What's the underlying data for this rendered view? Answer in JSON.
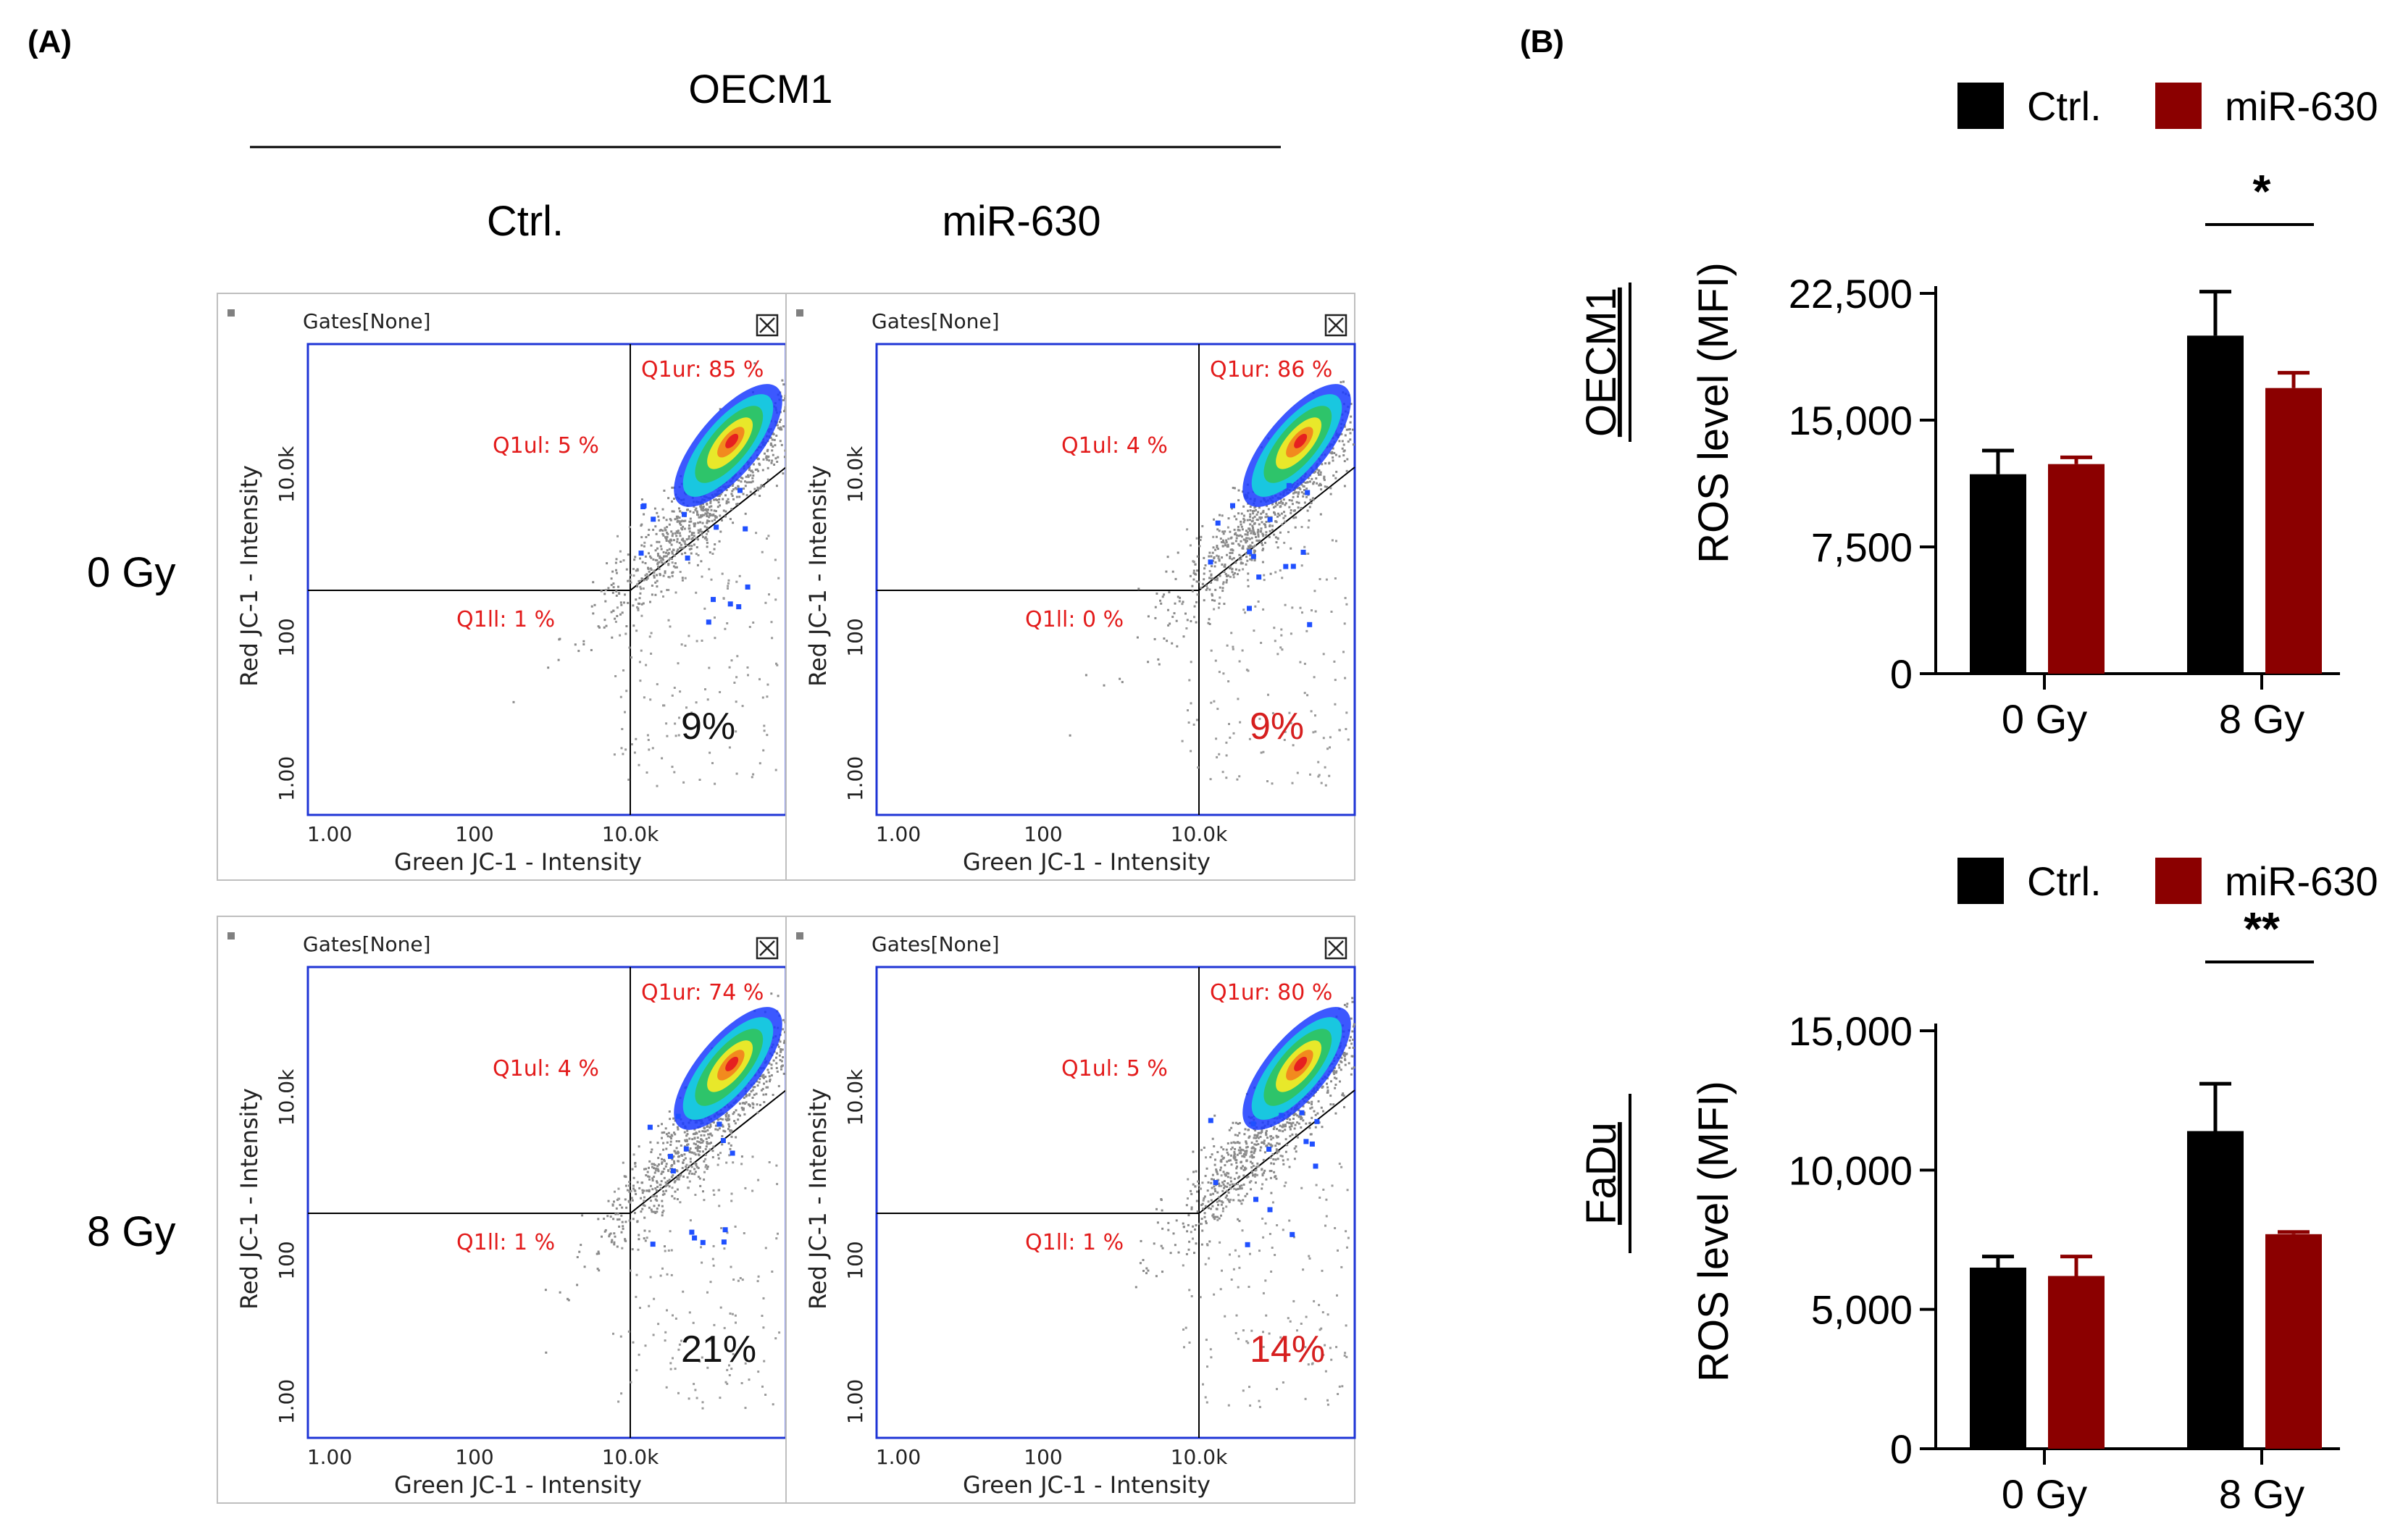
{
  "panel_a": {
    "label": "(A)",
    "cell_line": "OECM1",
    "col_ctrl": "Ctrl.",
    "col_mir": "miR-630",
    "row_0": "0 Gy",
    "row_8": "8 Gy",
    "gates_label": "Gates[None]",
    "x_axis_title": "Green JC-1 - Intensity",
    "y_axis_title": "Red JC-1 - Intensity",
    "x_ticks": [
      "1.00",
      "100",
      "10.0k"
    ],
    "y_ticks": [
      "1.00",
      "100",
      "10.0k"
    ],
    "plots": [
      {
        "id": "ctrl-0gy",
        "q_ur": "Q1ur: 85 %",
        "q_ul": "Q1ul: 5 %",
        "q_ll": "Q1ll: 1 %",
        "lr_pct": "9%",
        "lr_color": "#111111"
      },
      {
        "id": "mir-0gy",
        "q_ur": "Q1ur: 86 %",
        "q_ul": "Q1ul: 4 %",
        "q_ll": "Q1ll: 0 %",
        "lr_pct": "9%",
        "lr_color": "#d61f1f"
      },
      {
        "id": "ctrl-8gy",
        "q_ur": "Q1ur: 74 %",
        "q_ul": "Q1ul: 4 %",
        "q_ll": "Q1ll: 1 %",
        "lr_pct": "21%",
        "lr_color": "#111111"
      },
      {
        "id": "mir-8gy",
        "q_ur": "Q1ur: 80 %",
        "q_ul": "Q1ul: 5 %",
        "q_ll": "Q1ll: 1 %",
        "lr_pct": "14%",
        "lr_color": "#d61f1f"
      }
    ]
  },
  "panel_b": {
    "label": "(B)"
  },
  "chart_data": [
    {
      "type": "bar",
      "cell_line": "OECM1",
      "ylabel": "ROS level (MFI)",
      "categories": [
        "0 Gy",
        "8 Gy"
      ],
      "series": [
        {
          "name": "Ctrl.",
          "color": "#000000",
          "values": [
            11800,
            20000
          ],
          "errors": [
            1400,
            2600
          ]
        },
        {
          "name": "miR-630",
          "color": "#8b0000",
          "values": [
            12400,
            16900
          ],
          "errors": [
            400,
            900
          ]
        }
      ],
      "ylim": [
        0,
        22500
      ],
      "yticks": [
        0,
        7500,
        15000,
        22500
      ],
      "ytick_labels": [
        "0",
        "7,500",
        "15,000",
        "22,500"
      ],
      "significance": [
        {
          "category": "8 Gy",
          "label": "*"
        }
      ],
      "legend": "top"
    },
    {
      "type": "bar",
      "cell_line": "FaDu",
      "ylabel": "ROS level (MFI)",
      "categories": [
        "0 Gy",
        "8 Gy"
      ],
      "series": [
        {
          "name": "Ctrl.",
          "color": "#000000",
          "values": [
            6500,
            11400
          ],
          "errors": [
            400,
            1700
          ]
        },
        {
          "name": "miR-630",
          "color": "#8b0000",
          "values": [
            6200,
            7700
          ],
          "errors": [
            700,
            80
          ]
        }
      ],
      "ylim": [
        0,
        15000
      ],
      "yticks": [
        0,
        5000,
        10000,
        15000
      ],
      "ytick_labels": [
        "0",
        "5,000",
        "10,000",
        "15,000"
      ],
      "significance": [
        {
          "category": "8 Gy",
          "label": "**"
        }
      ],
      "legend": "top"
    }
  ]
}
